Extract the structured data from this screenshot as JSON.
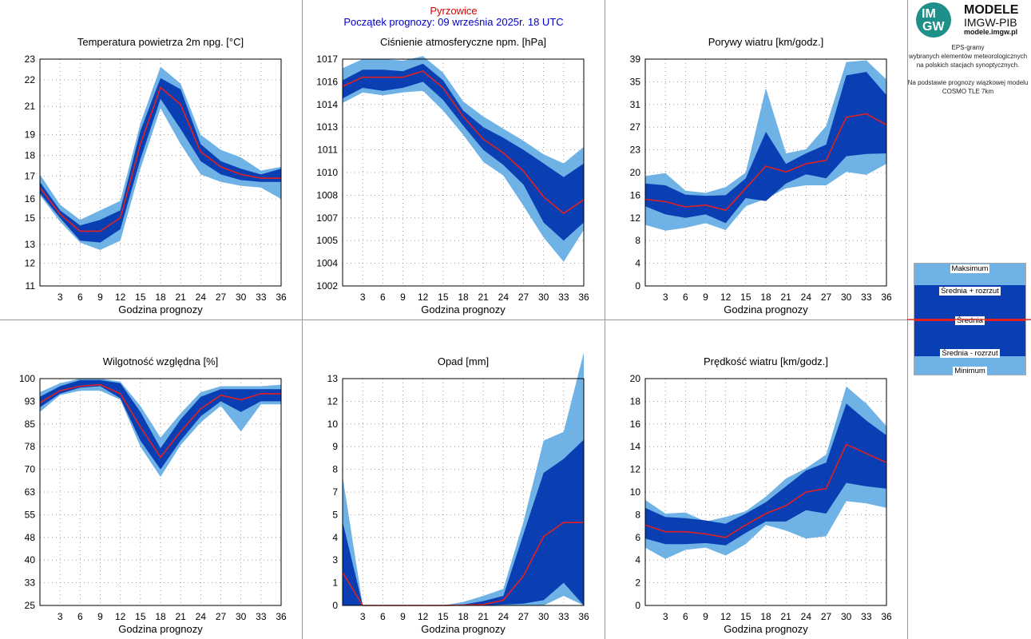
{
  "header": {
    "station": "Pyrzowice",
    "forecast_start": "Początek prognozy: 09 września 2025r. 18 UTC"
  },
  "logo": {
    "letters_top": "IM",
    "letters_bottom": "GW",
    "line1": "MODELE",
    "line2": "IMGW-PIB",
    "line3": "modele.imgw.pl"
  },
  "description": {
    "line1": "EPS-gramy",
    "line2": "wybranych elementów meteorologicznych",
    "line3": "na polskich stacjach  synoptycznych.",
    "line4": "Na podstawie prognozy wiązkowej modelu",
    "line5": "COSMO TLE 7km"
  },
  "legend": {
    "max": "Maksimum",
    "mean_plus": "Średnia + rozrzut",
    "mean": "Średnia",
    "mean_minus": "Średnia - rozrzut",
    "min": "Minimum"
  },
  "colors": {
    "minmax_band": "#6fb2e6",
    "spread_band": "#0a3fb3",
    "mean_line": "#e22020",
    "station": "#e00000",
    "forecast_start": "#0000c8"
  },
  "chart_data": [
    {
      "type": "area",
      "title": "Temperatura powietrza 2m npg. [°C]",
      "xlabel": "Godzina prognozy",
      "ylabel": "",
      "ylim": [
        11,
        23
      ],
      "xlim": [
        0,
        36
      ],
      "yticks": [
        "11",
        "12",
        "13",
        "15",
        "16",
        "17",
        "18",
        "19",
        "21",
        "22",
        "23"
      ],
      "ytick_values": [
        11,
        12.2,
        13.2,
        14.6,
        15.6,
        16.8,
        17.9,
        19,
        20.5,
        21.9,
        23
      ],
      "xticks": [
        "3",
        "6",
        "9",
        "12",
        "15",
        "18",
        "21",
        "24",
        "27",
        "30",
        "33",
        "36"
      ],
      "x": [
        0,
        3,
        6,
        9,
        12,
        15,
        18,
        21,
        24,
        27,
        30,
        33,
        36
      ],
      "series": [
        {
          "name": "Maksimum",
          "values": [
            16.9,
            15.3,
            14.5,
            15.0,
            15.5,
            19.6,
            22.6,
            21.7,
            19.0,
            18.2,
            17.8,
            17.1,
            17.3
          ]
        },
        {
          "name": "Średnia + rozrzut",
          "values": [
            16.5,
            15.0,
            14.2,
            14.5,
            15.0,
            19.2,
            22.0,
            21.4,
            18.5,
            17.6,
            17.2,
            16.9,
            17.2
          ]
        },
        {
          "name": "Średnia",
          "values": [
            16.2,
            14.8,
            13.9,
            13.9,
            14.6,
            18.5,
            21.5,
            20.6,
            18.1,
            17.3,
            16.9,
            16.7,
            16.7
          ]
        },
        {
          "name": "Średnia - rozrzut",
          "values": [
            15.9,
            14.6,
            13.4,
            13.3,
            14.0,
            17.7,
            20.9,
            19.3,
            17.6,
            16.9,
            16.6,
            16.5,
            16.5
          ]
        },
        {
          "name": "Minimum",
          "values": [
            15.8,
            14.4,
            13.3,
            12.9,
            13.4,
            17.2,
            20.4,
            18.5,
            16.9,
            16.5,
            16.3,
            16.2,
            15.6
          ]
        }
      ]
    },
    {
      "type": "area",
      "title": "Ciśnienie atmosferyczne npm. [hPa]",
      "xlabel": "Godzina prognozy",
      "ylabel": "",
      "ylim": [
        1002,
        1017
      ],
      "xlim": [
        0,
        36
      ],
      "yticks": [
        "1002",
        "1004",
        "1005",
        "1007",
        "1008",
        "1010",
        "1011",
        "1013",
        "1014",
        "1016",
        "1017"
      ],
      "ytick_values": [
        1002,
        1003.5,
        1005,
        1006.5,
        1008,
        1009.5,
        1011,
        1012.5,
        1014,
        1015.5,
        1017
      ],
      "xticks": [
        "3",
        "6",
        "9",
        "12",
        "15",
        "18",
        "21",
        "24",
        "27",
        "30",
        "33",
        "36"
      ],
      "x": [
        0,
        3,
        6,
        9,
        12,
        15,
        18,
        21,
        24,
        27,
        30,
        33,
        36
      ],
      "series": [
        {
          "name": "Maksimum",
          "values": [
            1016.4,
            1017.0,
            1017.0,
            1016.9,
            1017.2,
            1016.1,
            1014.2,
            1013.2,
            1012.4,
            1011.6,
            1010.7,
            1010.1,
            1011.2
          ]
        },
        {
          "name": "Średnia + rozrzut",
          "values": [
            1015.6,
            1016.3,
            1016.3,
            1016.2,
            1016.7,
            1015.6,
            1013.6,
            1012.5,
            1011.8,
            1011.0,
            1010.1,
            1009.2,
            1010.1
          ]
        },
        {
          "name": "Średnia",
          "values": [
            1015.2,
            1015.8,
            1015.8,
            1015.8,
            1016.2,
            1015.1,
            1013.2,
            1011.7,
            1010.8,
            1009.6,
            1007.9,
            1006.8,
            1007.7
          ]
        },
        {
          "name": "Średnia - rozrzut",
          "values": [
            1014.4,
            1015.1,
            1014.9,
            1015.1,
            1015.5,
            1014.3,
            1012.6,
            1011.0,
            1010.0,
            1008.7,
            1006.2,
            1005.0,
            1006.2
          ]
        },
        {
          "name": "Minimum",
          "values": [
            1014.1,
            1014.8,
            1014.6,
            1014.8,
            1014.9,
            1013.6,
            1012.0,
            1010.2,
            1009.3,
            1007.3,
            1005.2,
            1003.6,
            1005.7
          ]
        }
      ]
    },
    {
      "type": "area",
      "title": "Porywy wiatru [km/godz.]",
      "xlabel": "Godzina prognozy",
      "ylabel": "",
      "ylim": [
        0,
        39
      ],
      "xlim": [
        0,
        36
      ],
      "yticks": [
        "0",
        "4",
        "8",
        "12",
        "16",
        "20",
        "23",
        "27",
        "31",
        "35",
        "39"
      ],
      "ytick_values": [
        0,
        3.9,
        7.8,
        11.7,
        15.6,
        19.5,
        23.4,
        27.3,
        31.2,
        35.1,
        39
      ],
      "xticks": [
        "3",
        "6",
        "9",
        "12",
        "15",
        "18",
        "21",
        "24",
        "27",
        "30",
        "33",
        "36"
      ],
      "x": [
        0,
        3,
        6,
        9,
        12,
        15,
        18,
        21,
        24,
        27,
        30,
        33,
        36
      ],
      "series": [
        {
          "name": "Maksimum",
          "values": [
            18.9,
            19.4,
            16.4,
            16.0,
            17.0,
            19.5,
            34.0,
            22.8,
            23.5,
            27.5,
            38.5,
            38.8,
            35.5
          ]
        },
        {
          "name": "Średnia + rozrzut",
          "values": [
            17.6,
            17.3,
            15.7,
            15.5,
            15.6,
            18.5,
            26.5,
            21.0,
            22.8,
            24.3,
            36.2,
            36.8,
            32.8
          ]
        },
        {
          "name": "Średnia",
          "values": [
            14.9,
            14.5,
            13.6,
            13.9,
            13.0,
            16.8,
            20.6,
            19.6,
            21.0,
            21.6,
            29.0,
            29.6,
            27.7
          ]
        },
        {
          "name": "Średnia - rozrzut",
          "values": [
            13.7,
            12.3,
            11.7,
            12.3,
            10.8,
            15.1,
            14.6,
            17.6,
            19.2,
            18.5,
            22.3,
            22.7,
            22.8
          ]
        },
        {
          "name": "Minimum",
          "values": [
            10.5,
            9.5,
            10.0,
            10.8,
            9.6,
            13.7,
            15.0,
            16.8,
            17.3,
            17.3,
            19.6,
            19.1,
            21.0
          ]
        }
      ]
    },
    {
      "type": "area",
      "title": "Wilgotność względna [%]",
      "xlabel": "Godzina prognozy",
      "ylabel": "",
      "ylim": [
        25,
        100
      ],
      "xlim": [
        0,
        36
      ],
      "yticks": [
        "25",
        "33",
        "40",
        "48",
        "55",
        "63",
        "70",
        "78",
        "85",
        "93",
        "100"
      ],
      "ytick_values": [
        25,
        32.5,
        40,
        47.5,
        55,
        62.5,
        70,
        77.5,
        85,
        92.5,
        100
      ],
      "xticks": [
        "3",
        "6",
        "9",
        "12",
        "15",
        "18",
        "21",
        "24",
        "27",
        "30",
        "33",
        "36"
      ],
      "x": [
        0,
        3,
        6,
        9,
        12,
        15,
        18,
        21,
        24,
        27,
        30,
        33,
        36
      ],
      "series": [
        {
          "name": "Maksimum",
          "values": [
            95.5,
            98.5,
            100,
            100,
            99,
            91,
            80.5,
            88.5,
            95.5,
            97.5,
            97.5,
            97.5,
            98
          ]
        },
        {
          "name": "Średnia + rozrzut",
          "values": [
            94,
            97.5,
            99.5,
            99.5,
            98.5,
            89,
            77,
            86.5,
            94,
            96.5,
            96.5,
            96.5,
            96.5
          ]
        },
        {
          "name": "Średnia",
          "values": [
            92,
            96,
            97.5,
            98,
            95,
            84,
            74,
            82.5,
            90,
            94.5,
            93,
            95,
            95
          ]
        },
        {
          "name": "Średnia - rozrzut",
          "values": [
            90.5,
            95,
            97,
            97.5,
            93.5,
            79.5,
            70,
            79.5,
            87.5,
            92.5,
            89,
            92.5,
            92.5
          ]
        },
        {
          "name": "Minimum",
          "values": [
            89,
            94.5,
            96,
            96,
            93,
            77.5,
            67.5,
            78,
            85.5,
            91,
            82.5,
            91.5,
            91.5
          ]
        }
      ]
    },
    {
      "type": "area",
      "title": "Opad [mm]",
      "xlabel": "Godzina prognozy",
      "ylabel": "",
      "ylim": [
        0,
        13
      ],
      "xlim": [
        0,
        36
      ],
      "yticks": [
        "0",
        "1",
        "3",
        "4",
        "5",
        "7",
        "8",
        "9",
        "10",
        "12",
        "13"
      ],
      "ytick_values": [
        0,
        1.3,
        2.6,
        3.9,
        5.2,
        6.5,
        7.8,
        9.1,
        10.4,
        11.7,
        13
      ],
      "xticks": [
        "3",
        "6",
        "9",
        "12",
        "15",
        "18",
        "21",
        "24",
        "27",
        "30",
        "33",
        "36"
      ],
      "x": [
        0,
        3,
        6,
        9,
        12,
        15,
        18,
        21,
        24,
        27,
        30,
        33,
        36
      ],
      "series": [
        {
          "name": "Maksimum",
          "values": [
            7.4,
            0,
            0,
            0,
            0,
            0,
            0.2,
            0.55,
            0.95,
            4.8,
            9.45,
            9.95,
            14.5
          ]
        },
        {
          "name": "Średnia + rozrzut",
          "values": [
            4.8,
            0,
            0,
            0,
            0,
            0,
            0.05,
            0.25,
            0.55,
            4.1,
            7.6,
            8.4,
            9.5
          ]
        },
        {
          "name": "Średnia",
          "values": [
            1.9,
            0,
            0,
            0,
            0,
            0,
            0.02,
            0.05,
            0.3,
            1.7,
            3.95,
            4.75,
            4.75
          ]
        },
        {
          "name": "Średnia - rozrzut",
          "values": [
            0,
            0,
            0,
            0,
            0,
            0,
            0,
            0,
            0.05,
            0.1,
            0.3,
            1.3,
            0
          ]
        },
        {
          "name": "Minimum",
          "values": [
            0,
            0,
            0,
            0,
            0,
            0,
            0,
            0,
            0,
            0,
            0,
            0.55,
            0
          ]
        }
      ]
    },
    {
      "type": "area",
      "title": "Prędkość wiatru [km/godz.]",
      "xlabel": "Godzina prognozy",
      "ylabel": "",
      "ylim": [
        0,
        20
      ],
      "xlim": [
        0,
        36
      ],
      "yticks": [
        "0",
        "2",
        "4",
        "6",
        "8",
        "10",
        "12",
        "14",
        "16",
        "18",
        "20"
      ],
      "ytick_values": [
        0,
        2,
        4,
        6,
        8,
        10,
        12,
        14,
        16,
        18,
        20
      ],
      "xticks": [
        "3",
        "6",
        "9",
        "12",
        "15",
        "18",
        "21",
        "24",
        "27",
        "30",
        "33",
        "36"
      ],
      "x": [
        0,
        3,
        6,
        9,
        12,
        15,
        18,
        21,
        24,
        27,
        30,
        33,
        36
      ],
      "series": [
        {
          "name": "Maksimum",
          "values": [
            9.3,
            8.1,
            8.2,
            7.4,
            7.8,
            8.3,
            9.6,
            11.2,
            12.1,
            13.3,
            19.3,
            17.8,
            15.8
          ]
        },
        {
          "name": "Średnia + rozrzut",
          "values": [
            8.6,
            7.8,
            7.7,
            7.5,
            7.2,
            8.1,
            9.1,
            10.5,
            11.9,
            12.6,
            17.8,
            16.3,
            15.0
          ]
        },
        {
          "name": "Średnia",
          "values": [
            7.1,
            6.5,
            6.5,
            6.3,
            6.0,
            7.1,
            8.1,
            8.8,
            10.0,
            10.3,
            14.2,
            13.4,
            12.6
          ]
        },
        {
          "name": "Średnia - rozrzut",
          "values": [
            5.9,
            5.4,
            5.4,
            5.5,
            5.3,
            6.4,
            7.4,
            7.4,
            8.4,
            8.1,
            10.8,
            10.5,
            10.3
          ]
        },
        {
          "name": "Minimum",
          "values": [
            5.1,
            4.1,
            4.9,
            5.1,
            4.4,
            5.4,
            7.1,
            6.6,
            5.9,
            6.1,
            9.2,
            9.0,
            8.6
          ]
        }
      ]
    }
  ]
}
